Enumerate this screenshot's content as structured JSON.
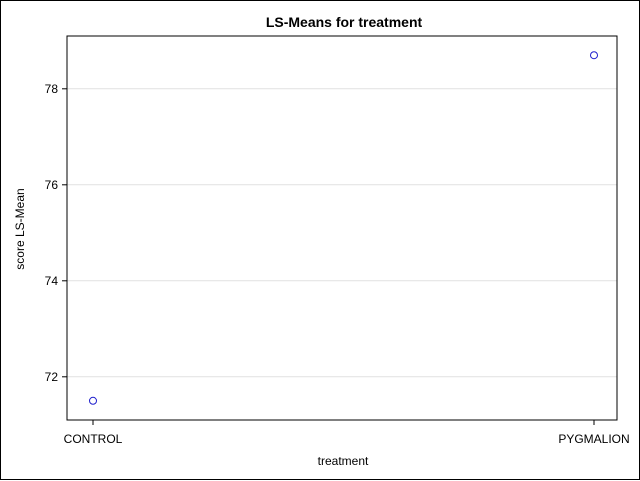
{
  "chart_data": {
    "type": "scatter",
    "title": "LS-Means for treatment",
    "xlabel": "treatment",
    "ylabel": "score LS-Mean",
    "categories": [
      "CONTROL",
      "PYGMALION"
    ],
    "series": [
      {
        "values": [
          71.5,
          78.7
        ]
      }
    ],
    "ylim": [
      71.1,
      79.1
    ],
    "yticks": [
      72,
      74,
      76,
      78
    ],
    "grid": true,
    "marker": "open-circle",
    "colors": {
      "marker": "#1f1fcc",
      "grid": "#e1e1e1",
      "axis": "#000000",
      "frame": "#000000"
    }
  }
}
